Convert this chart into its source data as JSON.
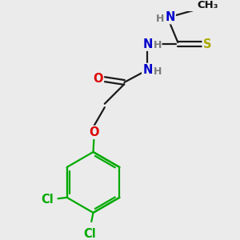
{
  "bg_color": "#ebebeb",
  "atom_colors": {
    "C": "#000000",
    "H": "#7a7a7a",
    "N": "#0000cc",
    "O": "#dd0000",
    "S": "#aaaa00",
    "Cl": "#00aa00"
  },
  "bond_color": "#1a1a1a",
  "bond_width": 1.6,
  "font_size_atom": 10.5,
  "font_size_h": 9,
  "font_size_me": 9.5
}
